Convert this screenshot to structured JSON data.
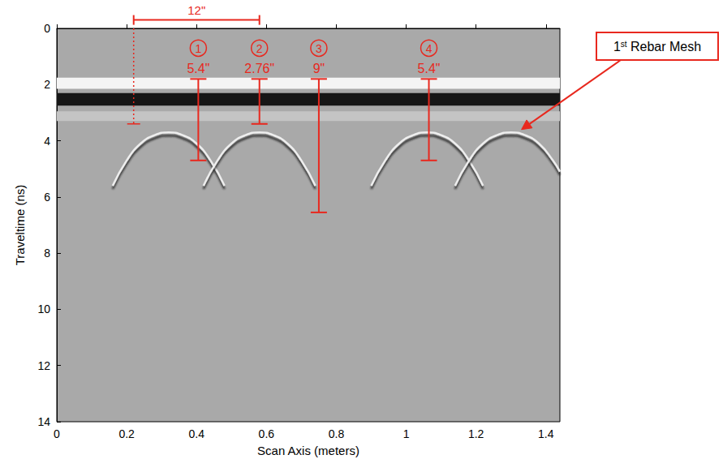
{
  "chart_data": {
    "type": "radargram",
    "xlabel": "Scan Axis (meters)",
    "ylabel": "Traveltime (ns)",
    "xlim": [
      0,
      1.44
    ],
    "xticks": [
      0,
      0.2,
      0.4,
      0.6,
      0.8,
      1,
      1.2,
      1.4
    ],
    "ylim": [
      0,
      14
    ],
    "yticks": [
      0,
      2,
      4,
      6,
      8,
      10,
      12,
      14
    ],
    "grid": false,
    "bands": [
      {
        "from": 1.75,
        "to": 2.15,
        "color": "#f4f4f4"
      },
      {
        "from": 2.3,
        "to": 2.75,
        "color": "#161616"
      },
      {
        "from": 2.95,
        "to": 3.3,
        "color": "#c4c4c4"
      }
    ],
    "reflections": [
      {
        "points": [
          [
            0.16,
            5.6
          ],
          [
            0.2,
            4.7
          ],
          [
            0.24,
            4.1
          ],
          [
            0.28,
            3.8
          ],
          [
            0.32,
            3.7
          ],
          [
            0.36,
            3.8
          ],
          [
            0.4,
            4.1
          ],
          [
            0.44,
            4.7
          ],
          [
            0.48,
            5.6
          ]
        ]
      },
      {
        "points": [
          [
            0.42,
            5.6
          ],
          [
            0.46,
            4.7
          ],
          [
            0.5,
            4.1
          ],
          [
            0.54,
            3.8
          ],
          [
            0.58,
            3.7
          ],
          [
            0.62,
            3.8
          ],
          [
            0.66,
            4.1
          ],
          [
            0.7,
            4.7
          ],
          [
            0.74,
            5.6
          ]
        ]
      },
      {
        "points": [
          [
            0.9,
            5.6
          ],
          [
            0.94,
            4.7
          ],
          [
            0.98,
            4.1
          ],
          [
            1.02,
            3.8
          ],
          [
            1.06,
            3.7
          ],
          [
            1.1,
            3.8
          ],
          [
            1.14,
            4.1
          ],
          [
            1.18,
            4.7
          ],
          [
            1.22,
            5.6
          ]
        ]
      },
      {
        "points": [
          [
            1.14,
            5.6
          ],
          [
            1.18,
            4.7
          ],
          [
            1.22,
            4.1
          ],
          [
            1.26,
            3.8
          ],
          [
            1.3,
            3.7
          ],
          [
            1.34,
            3.8
          ],
          [
            1.38,
            4.1
          ],
          [
            1.42,
            4.7
          ],
          [
            1.44,
            5.1
          ]
        ]
      }
    ],
    "annotations": {
      "color": "#e8281e",
      "bracket": {
        "label": "12\"",
        "x_from": 0.22,
        "x_to": 0.58,
        "y": -0.3
      },
      "dotted": {
        "x": 0.22,
        "y_from": 0,
        "y_to": 3.4,
        "line_style": "dotted"
      },
      "depths": [
        {
          "number": "1",
          "label": "5.4\"",
          "x": 0.405,
          "y_from": 1.8,
          "y_to": 4.7
        },
        {
          "number": "2",
          "label": "2.76\"",
          "x": 0.58,
          "y_from": 1.8,
          "y_to": 3.4
        },
        {
          "number": "3",
          "label": "9\"",
          "x": 0.75,
          "y_from": 1.8,
          "y_to": 6.55
        },
        {
          "number": "4",
          "label": "5.4\"",
          "x": 1.065,
          "y_from": 1.8,
          "y_to": 4.7
        }
      ]
    },
    "callout": {
      "text": "1st Rebar Mesh",
      "arrow_to": [
        1.33,
        3.6
      ]
    }
  }
}
